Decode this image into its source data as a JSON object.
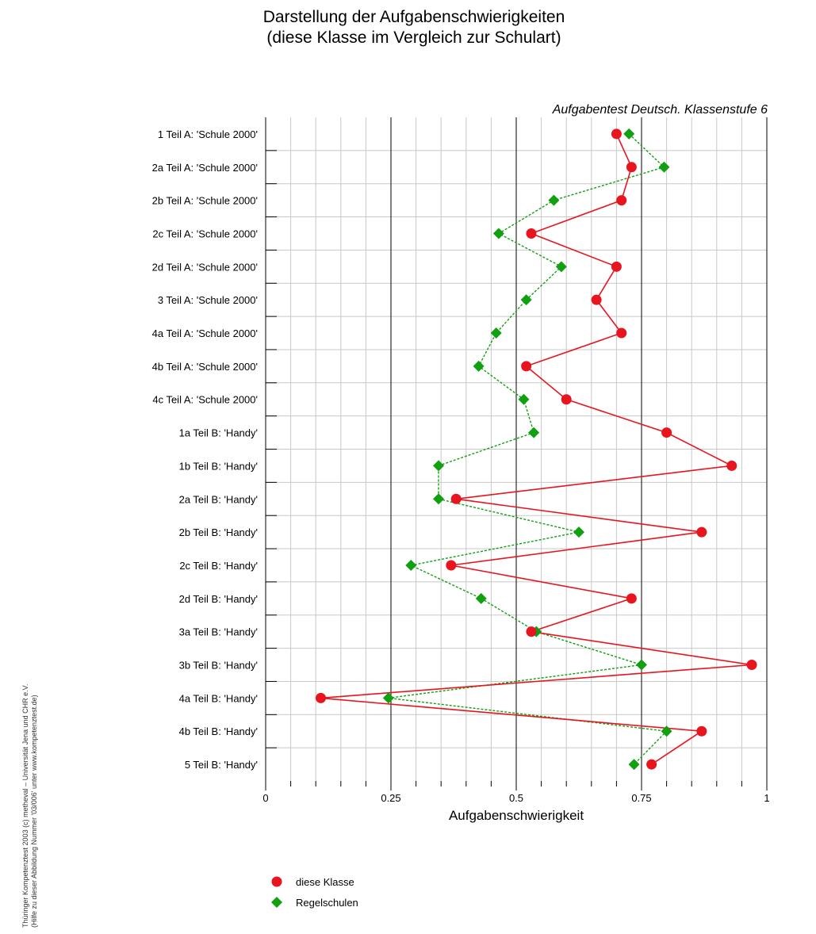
{
  "chart_data": {
    "type": "line",
    "title": [
      "Darstellung der Aufgabenschwierigkeiten",
      "(diese Klasse im Vergleich zur Schulart)"
    ],
    "subtitle": "Aufgabentest Deutsch. Klassenstufe 6",
    "xlabel": "Aufgabenschwierigkeit",
    "xlim": [
      0,
      1
    ],
    "x_ticks": [
      0,
      0.25,
      0.5,
      0.75,
      1
    ],
    "x_tick_labels": [
      "0",
      "0.25",
      "0.5",
      "0.75",
      "1"
    ],
    "grid": true,
    "legend_position": "bottom-left",
    "categories": [
      "1 Teil A: 'Schule 2000'",
      "2a Teil A: 'Schule 2000'",
      "2b Teil A: 'Schule 2000'",
      "2c Teil A: 'Schule 2000'",
      "2d Teil A: 'Schule 2000'",
      "3 Teil A: 'Schule 2000'",
      "4a Teil A: 'Schule 2000'",
      "4b Teil A: 'Schule 2000'",
      "4c Teil A: 'Schule 2000'",
      "1a Teil B: 'Handy'",
      "1b Teil B: 'Handy'",
      "2a Teil B: 'Handy'",
      "2b Teil B: 'Handy'",
      "2c Teil B: 'Handy'",
      "2d Teil B: 'Handy'",
      "3a Teil B: 'Handy'",
      "3b Teil B: 'Handy'",
      "4a Teil B: 'Handy'",
      "4b Teil B: 'Handy'",
      "5 Teil B: 'Handy'"
    ],
    "series": [
      {
        "name": "diese Klasse",
        "color": "#e8141e",
        "marker": "circle",
        "line": "solid",
        "values": [
          0.7,
          0.73,
          0.71,
          0.53,
          0.7,
          0.66,
          0.71,
          0.52,
          0.6,
          0.8,
          0.93,
          0.38,
          0.87,
          0.37,
          0.73,
          0.53,
          0.97,
          0.11,
          0.87,
          0.77
        ]
      },
      {
        "name": "Regelschulen",
        "color": "#10a010",
        "marker": "diamond",
        "line": "dotted",
        "values": [
          0.725,
          0.795,
          0.575,
          0.465,
          0.59,
          0.52,
          0.46,
          0.425,
          0.515,
          0.535,
          0.345,
          0.345,
          0.625,
          0.29,
          0.43,
          0.54,
          0.75,
          0.245,
          0.8,
          0.735
        ]
      }
    ]
  },
  "credit": {
    "line1": "Thüringer Kompetenztest 2003 (c) metheval – Universität Jena und CHR e.V.",
    "line2": "(Hilfe zu dieser Abbildung Nummer '03/006' unter www.kompetenztest.de)"
  }
}
